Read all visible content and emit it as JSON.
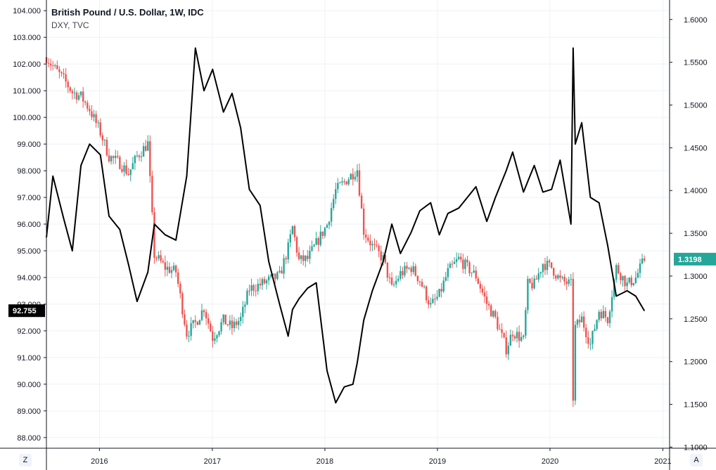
{
  "legend": {
    "main_series": "British Pound / U.S. Dollar, 1W, IDC",
    "overlay_series": "DXY, TVC"
  },
  "corner_buttons": {
    "left": "Z",
    "right": "A"
  },
  "colors": {
    "up": "#26a69a",
    "down": "#ef5350",
    "overlay_line": "#000000",
    "grid": "#eef1f5",
    "axis": "#131722",
    "gbp_tag": "#26a69a",
    "dxy_tag": "#000000"
  },
  "chart_data": {
    "type": "line",
    "series": [
      {
        "name": "British Pound / U.S. Dollar, 1W, IDC",
        "style": "candlestick",
        "axis": "right",
        "last_value": "1.3198",
        "x": [
          "2015-07-13",
          "2015-08-03",
          "2015-09-07",
          "2015-10-05",
          "2015-11-02",
          "2015-11-30",
          "2016-01-04",
          "2016-02-01",
          "2016-03-07",
          "2016-04-04",
          "2016-05-02",
          "2016-06-06",
          "2016-06-27",
          "2016-08-01",
          "2016-09-05",
          "2016-10-10",
          "2016-11-07",
          "2016-12-05",
          "2017-01-02",
          "2017-02-06",
          "2017-03-06",
          "2017-04-03",
          "2017-05-01",
          "2017-06-05",
          "2017-07-03",
          "2017-08-07",
          "2017-09-04",
          "2017-09-18",
          "2017-10-09",
          "2017-11-06",
          "2017-12-04",
          "2018-01-08",
          "2018-02-05",
          "2018-03-05",
          "2018-04-02",
          "2018-04-16",
          "2018-05-07",
          "2018-06-04",
          "2018-07-09",
          "2018-08-06",
          "2018-09-03",
          "2018-10-08",
          "2018-11-05",
          "2018-12-10",
          "2019-01-07",
          "2019-02-04",
          "2019-03-11",
          "2019-04-08",
          "2019-05-06",
          "2019-06-10",
          "2019-07-08",
          "2019-08-12",
          "2019-09-02",
          "2019-10-07",
          "2019-10-21",
          "2019-11-11",
          "2019-12-09",
          "2020-01-06",
          "2020-02-03",
          "2020-03-09",
          "2020-03-16",
          "2020-03-23",
          "2020-04-13",
          "2020-05-11",
          "2020-06-08",
          "2020-07-06",
          "2020-08-03",
          "2020-09-07",
          "2020-10-05",
          "2020-11-02"
        ],
        "values": [
          1.556,
          1.545,
          1.53,
          1.515,
          1.51,
          1.495,
          1.468,
          1.44,
          1.432,
          1.42,
          1.44,
          1.455,
          1.325,
          1.31,
          1.305,
          1.233,
          1.245,
          1.263,
          1.228,
          1.248,
          1.24,
          1.25,
          1.285,
          1.29,
          1.295,
          1.3,
          1.333,
          1.357,
          1.318,
          1.32,
          1.338,
          1.36,
          1.4,
          1.41,
          1.42,
          1.425,
          1.353,
          1.335,
          1.32,
          1.285,
          1.303,
          1.31,
          1.295,
          1.265,
          1.278,
          1.305,
          1.32,
          1.31,
          1.3,
          1.268,
          1.25,
          1.215,
          1.235,
          1.225,
          1.29,
          1.29,
          1.315,
          1.31,
          1.295,
          1.29,
          1.158,
          1.24,
          1.25,
          1.22,
          1.26,
          1.25,
          1.31,
          1.29,
          1.298,
          1.3198
        ],
        "range_high": 1.601,
        "range_low": 1.146
      },
      {
        "name": "DXY, TVC",
        "style": "line",
        "axis": "left",
        "last_value": "92.755",
        "x": [
          "2015-07-13",
          "2015-08-03",
          "2015-09-07",
          "2015-10-05",
          "2015-11-02",
          "2015-11-30",
          "2016-01-04",
          "2016-02-01",
          "2016-03-07",
          "2016-04-04",
          "2016-05-02",
          "2016-06-06",
          "2016-06-27",
          "2016-08-01",
          "2016-09-05",
          "2016-10-10",
          "2016-11-07",
          "2016-12-05",
          "2017-01-02",
          "2017-02-06",
          "2017-03-06",
          "2017-04-03",
          "2017-05-01",
          "2017-06-05",
          "2017-07-03",
          "2017-08-07",
          "2017-09-04",
          "2017-09-18",
          "2017-10-09",
          "2017-11-06",
          "2017-12-04",
          "2018-01-08",
          "2018-02-05",
          "2018-03-05",
          "2018-04-02",
          "2018-04-16",
          "2018-05-07",
          "2018-06-04",
          "2018-07-09",
          "2018-08-06",
          "2018-09-03",
          "2018-10-08",
          "2018-11-05",
          "2018-12-10",
          "2019-01-07",
          "2019-02-04",
          "2019-03-11",
          "2019-04-08",
          "2019-05-06",
          "2019-06-10",
          "2019-07-08",
          "2019-08-12",
          "2019-09-02",
          "2019-10-07",
          "2019-10-21",
          "2019-11-11",
          "2019-12-09",
          "2020-01-06",
          "2020-02-03",
          "2020-03-09",
          "2020-03-16",
          "2020-03-23",
          "2020-04-13",
          "2020-05-11",
          "2020-06-08",
          "2020-07-06",
          "2020-08-03",
          "2020-09-07",
          "2020-10-05",
          "2020-11-02"
        ],
        "values": [
          95.5,
          97.8,
          96.2,
          95.0,
          98.2,
          99.0,
          98.6,
          96.3,
          95.8,
          94.5,
          93.1,
          94.2,
          96.0,
          95.6,
          95.4,
          97.8,
          102.6,
          101.0,
          101.8,
          100.2,
          100.9,
          99.6,
          97.3,
          96.7,
          94.6,
          93.0,
          91.8,
          92.8,
          93.2,
          93.6,
          93.8,
          90.5,
          89.3,
          89.9,
          90.0,
          90.8,
          92.4,
          93.5,
          94.6,
          96.0,
          94.9,
          95.7,
          96.5,
          96.8,
          95.6,
          96.4,
          96.6,
          97.0,
          97.4,
          96.1,
          97.0,
          98.0,
          98.7,
          97.2,
          97.6,
          98.2,
          97.2,
          97.3,
          98.4,
          96.0,
          102.6,
          99.0,
          99.8,
          97.0,
          96.8,
          95.2,
          93.3,
          93.5,
          93.3,
          92.755
        ]
      }
    ],
    "x_ticks": [
      {
        "label": "2016",
        "value": "2016-01-01"
      },
      {
        "label": "2017",
        "value": "2017-01-01"
      },
      {
        "label": "2018",
        "value": "2018-01-01"
      },
      {
        "label": "2019",
        "value": "2019-01-01"
      },
      {
        "label": "2020",
        "value": "2020-01-01"
      },
      {
        "label": "2021",
        "value": "2021-01-01"
      }
    ],
    "left_axis": {
      "range": [
        87.6,
        104.4
      ],
      "ticks": [
        "104.000",
        "103.000",
        "102.000",
        "101.000",
        "100.000",
        "99.000",
        "98.000",
        "97.000",
        "96.000",
        "95.000",
        "94.000",
        "93.000",
        "92.000",
        "91.000",
        "90.000",
        "89.000",
        "88.000"
      ]
    },
    "right_axis": {
      "range": [
        1.0987,
        1.6228
      ],
      "ticks": [
        "1.6000",
        "1.5500",
        "1.5000",
        "1.4500",
        "1.4000",
        "1.3500",
        "1.3000",
        "1.2500",
        "1.2000",
        "1.1500",
        "1.1000"
      ]
    },
    "x_range": [
      "2015-07-13",
      "2020-12-31"
    ],
    "grid": true
  }
}
